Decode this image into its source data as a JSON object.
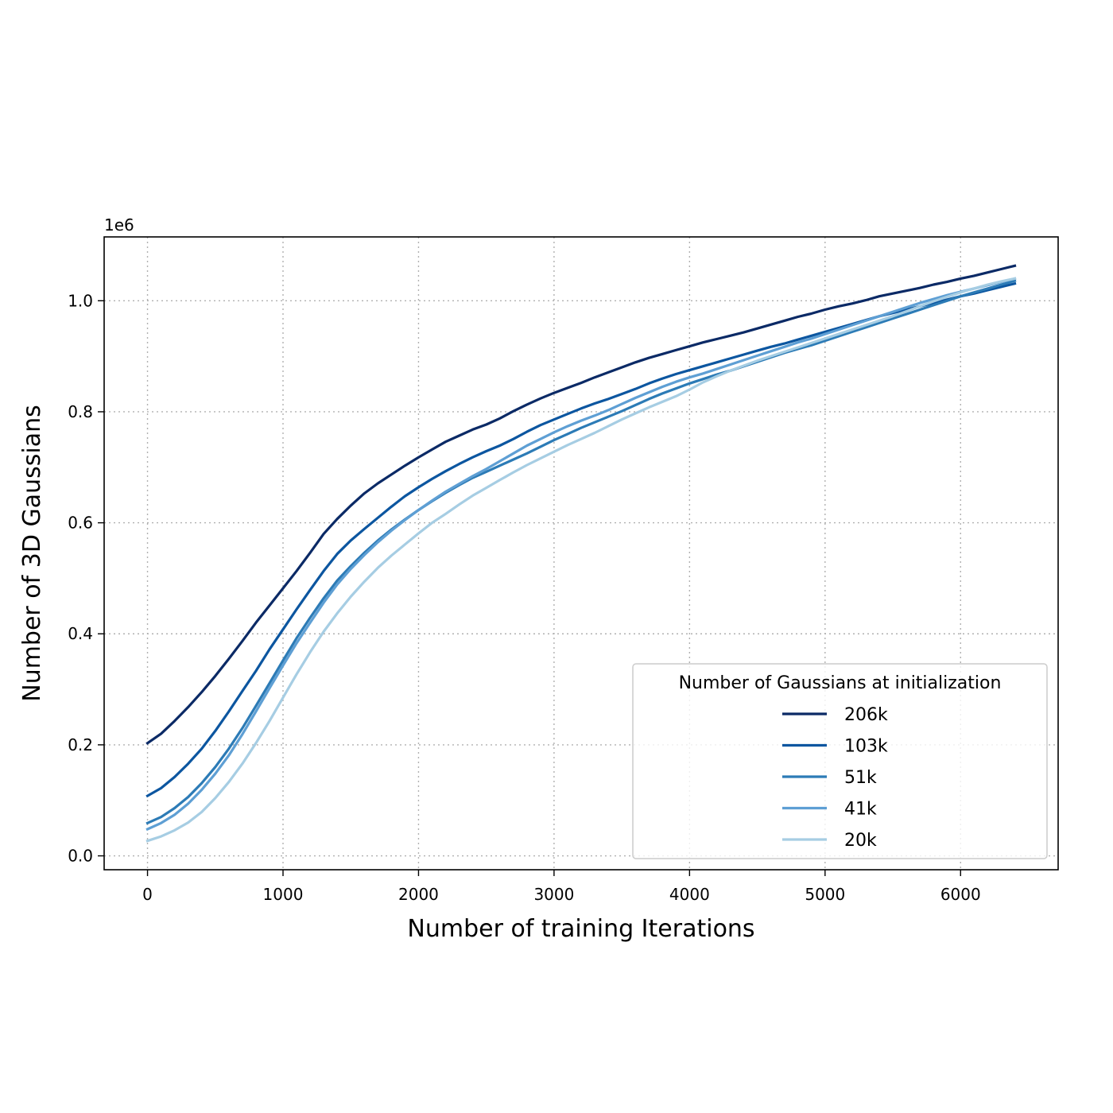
{
  "chart_data": {
    "type": "line",
    "xlabel": "Number of training Iterations",
    "ylabel": "Number of 3D Gaussians",
    "y_multiplier": "1e6",
    "xlim": [
      -320,
      6720
    ],
    "ylim": [
      -0.025,
      1.115
    ],
    "xticks": [
      0,
      1000,
      2000,
      3000,
      4000,
      5000,
      6000
    ],
    "xtick_labels": [
      "0",
      "1000",
      "2000",
      "3000",
      "4000",
      "5000",
      "6000"
    ],
    "yticks": [
      0.0,
      0.2,
      0.4,
      0.6,
      0.8,
      1.0
    ],
    "ytick_labels": [
      "0.0",
      "0.2",
      "0.4",
      "0.6",
      "0.8",
      "1.0"
    ],
    "grid": true,
    "legend": {
      "title": "Number of Gaussians at initialization",
      "placement": "lower-right"
    },
    "x": [
      0,
      100,
      200,
      300,
      400,
      500,
      600,
      700,
      800,
      900,
      1000,
      1100,
      1200,
      1300,
      1400,
      1500,
      1600,
      1700,
      1800,
      1900,
      2000,
      2100,
      2200,
      2300,
      2400,
      2500,
      2600,
      2700,
      2800,
      2900,
      3000,
      3100,
      3200,
      3300,
      3400,
      3500,
      3600,
      3700,
      3800,
      3900,
      4000,
      4100,
      4200,
      4300,
      4400,
      4500,
      4600,
      4700,
      4800,
      4900,
      5000,
      5100,
      5200,
      5300,
      5400,
      5500,
      5600,
      5700,
      5800,
      5900,
      6000,
      6100,
      6200,
      6300,
      6400
    ],
    "series": [
      {
        "name": "206k",
        "color": "#0b2a66",
        "values": [
          0.203,
          0.22,
          0.243,
          0.268,
          0.295,
          0.324,
          0.355,
          0.387,
          0.42,
          0.451,
          0.482,
          0.513,
          0.546,
          0.58,
          0.607,
          0.631,
          0.653,
          0.671,
          0.687,
          0.703,
          0.718,
          0.732,
          0.746,
          0.757,
          0.768,
          0.777,
          0.788,
          0.801,
          0.813,
          0.824,
          0.834,
          0.843,
          0.852,
          0.862,
          0.871,
          0.88,
          0.889,
          0.897,
          0.904,
          0.911,
          0.918,
          0.925,
          0.931,
          0.937,
          0.943,
          0.95,
          0.957,
          0.964,
          0.971,
          0.977,
          0.984,
          0.99,
          0.995,
          1.001,
          1.008,
          1.013,
          1.018,
          1.023,
          1.029,
          1.034,
          1.04,
          1.045,
          1.051,
          1.057,
          1.063
        ]
      },
      {
        "name": "103k",
        "color": "#0c56a0",
        "values": [
          0.108,
          0.122,
          0.142,
          0.166,
          0.193,
          0.225,
          0.26,
          0.297,
          0.333,
          0.372,
          0.408,
          0.444,
          0.479,
          0.513,
          0.544,
          0.568,
          0.589,
          0.609,
          0.629,
          0.648,
          0.664,
          0.679,
          0.693,
          0.706,
          0.718,
          0.729,
          0.739,
          0.751,
          0.764,
          0.776,
          0.786,
          0.796,
          0.806,
          0.815,
          0.823,
          0.832,
          0.841,
          0.851,
          0.86,
          0.868,
          0.875,
          0.882,
          0.889,
          0.896,
          0.903,
          0.91,
          0.917,
          0.923,
          0.93,
          0.937,
          0.944,
          0.951,
          0.958,
          0.965,
          0.972,
          0.978,
          0.984,
          0.99,
          0.996,
          1.002,
          1.008,
          1.013,
          1.019,
          1.025,
          1.031
        ]
      },
      {
        "name": "51k",
        "color": "#2c7bb6",
        "values": [
          0.059,
          0.07,
          0.086,
          0.106,
          0.131,
          0.16,
          0.193,
          0.23,
          0.27,
          0.311,
          0.352,
          0.392,
          0.429,
          0.464,
          0.496,
          0.522,
          0.546,
          0.568,
          0.588,
          0.606,
          0.623,
          0.639,
          0.654,
          0.668,
          0.681,
          0.692,
          0.703,
          0.714,
          0.725,
          0.737,
          0.749,
          0.76,
          0.771,
          0.781,
          0.791,
          0.801,
          0.812,
          0.823,
          0.833,
          0.842,
          0.851,
          0.859,
          0.867,
          0.874,
          0.882,
          0.89,
          0.898,
          0.906,
          0.913,
          0.92,
          0.928,
          0.936,
          0.944,
          0.952,
          0.96,
          0.968,
          0.976,
          0.984,
          0.992,
          1.0,
          1.008,
          1.015,
          1.022,
          1.029,
          1.036
        ]
      },
      {
        "name": "41k",
        "color": "#5e9fd4",
        "values": [
          0.048,
          0.059,
          0.074,
          0.094,
          0.119,
          0.148,
          0.181,
          0.219,
          0.26,
          0.302,
          0.343,
          0.383,
          0.42,
          0.456,
          0.489,
          0.517,
          0.542,
          0.565,
          0.586,
          0.605,
          0.623,
          0.64,
          0.656,
          0.67,
          0.684,
          0.697,
          0.711,
          0.725,
          0.739,
          0.751,
          0.763,
          0.774,
          0.784,
          0.793,
          0.803,
          0.814,
          0.825,
          0.835,
          0.845,
          0.854,
          0.862,
          0.869,
          0.877,
          0.885,
          0.893,
          0.901,
          0.909,
          0.917,
          0.925,
          0.932,
          0.94,
          0.948,
          0.956,
          0.964,
          0.972,
          0.98,
          0.988,
          0.996,
          1.003,
          1.01,
          1.016,
          1.022,
          1.028,
          1.034,
          1.04
        ]
      },
      {
        "name": "20k",
        "color": "#a6cde3",
        "values": [
          0.027,
          0.035,
          0.046,
          0.06,
          0.079,
          0.104,
          0.133,
          0.166,
          0.203,
          0.243,
          0.285,
          0.327,
          0.367,
          0.404,
          0.437,
          0.467,
          0.494,
          0.519,
          0.541,
          0.561,
          0.581,
          0.6,
          0.616,
          0.633,
          0.649,
          0.663,
          0.677,
          0.691,
          0.704,
          0.716,
          0.728,
          0.74,
          0.751,
          0.762,
          0.774,
          0.786,
          0.797,
          0.808,
          0.818,
          0.828,
          0.84,
          0.853,
          0.864,
          0.874,
          0.883,
          0.892,
          0.9,
          0.908,
          0.916,
          0.924,
          0.932,
          0.94,
          0.948,
          0.956,
          0.964,
          0.972,
          0.981,
          0.99,
          0.999,
          1.007,
          1.015,
          1.022,
          1.029,
          1.035,
          1.04
        ]
      }
    ]
  }
}
